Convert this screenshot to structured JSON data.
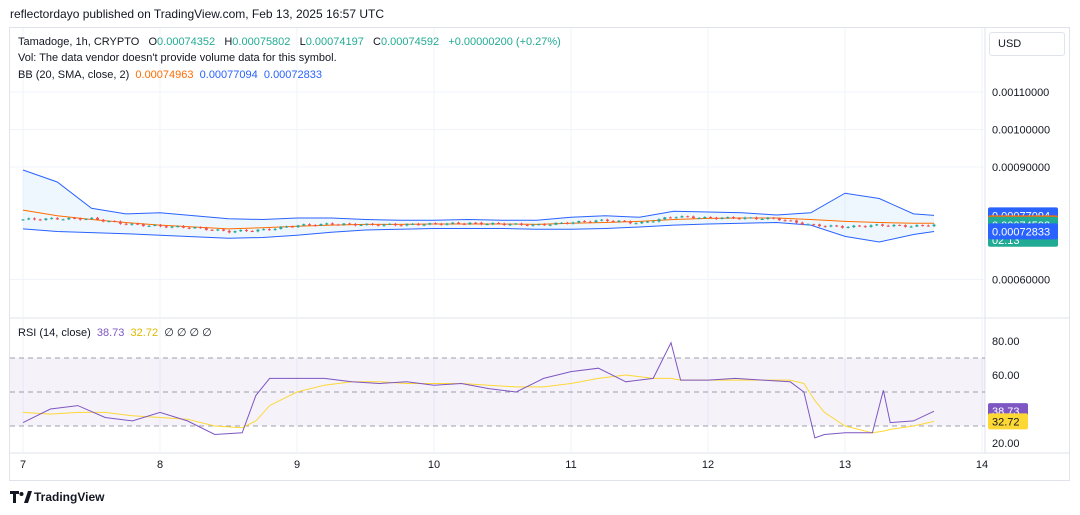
{
  "publisher": "reflectordayo published on TradingView.com, Feb 13, 2025 16:57 UTC",
  "legend": {
    "symbol": "Tamadoge, 1h, CRYPTO",
    "o_label": "O",
    "o": "0.00074352",
    "h_label": "H",
    "h": "0.00075802",
    "l_label": "L",
    "l": "0.00074197",
    "c_label": "C",
    "c": "0.00074592",
    "change": "+0.00000200 (+0.27%)",
    "vol": "Vol: The data vendor doesn't provide volume data for this symbol.",
    "bb_label": "BB (20, SMA, close, 2)",
    "bb_basis": "0.00074963",
    "bb_upper": "0.00077094",
    "bb_lower": "0.00072833"
  },
  "currency_button": "USD",
  "rsi_legend": {
    "label": "RSI (14, close)",
    "rsi": "38.73",
    "ma": "32.72",
    "extra": "∅ ∅ ∅ ∅"
  },
  "colors": {
    "up": "#26a69a",
    "down": "#ef5350",
    "basis": "#ff6d00",
    "band": "#2962ff",
    "rsi": "#7e57c2",
    "rsi_ma": "#fdd835",
    "text": "#131722",
    "last_price": "#22ab94"
  },
  "chart_data": [
    {
      "type": "line",
      "panel": "price",
      "y_ticks": [
        "0.00110000",
        "0.00100000",
        "0.00090000",
        "0.00060000"
      ],
      "x_ticks": [
        "7",
        "8",
        "9",
        "10",
        "11",
        "12",
        "13",
        "14"
      ],
      "ylim": [
        0.00052,
        0.00122
      ],
      "price_labels": {
        "upper": "0.00077094",
        "basis": "0.00074963",
        "last": "0.00074592",
        "countdown": "02:13",
        "lower": "0.00072833"
      },
      "x": [
        7.0,
        7.25,
        7.5,
        7.75,
        8.0,
        8.25,
        8.5,
        8.75,
        9.0,
        9.25,
        9.5,
        9.75,
        10.0,
        10.25,
        10.5,
        10.75,
        11.0,
        11.25,
        11.5,
        11.75,
        12.0,
        12.25,
        12.5,
        12.75,
        13.0,
        13.25,
        13.5,
        13.65
      ],
      "series": [
        {
          "role": "close",
          "values": [
            0.00076,
            0.000762,
            0.000762,
            0.000748,
            0.000742,
            0.000738,
            0.000728,
            0.000732,
            0.000744,
            0.000748,
            0.000746,
            0.000746,
            0.000748,
            0.00075,
            0.000748,
            0.000745,
            0.000752,
            0.000758,
            0.00075,
            0.000768,
            0.000764,
            0.000764,
            0.000762,
            0.000745,
            0.00074,
            0.000745,
            0.000742,
            0.000746
          ]
        },
        {
          "role": "upper",
          "values": [
            0.000892,
            0.00086,
            0.00079,
            0.000775,
            0.000778,
            0.00077,
            0.000762,
            0.00076,
            0.000764,
            0.000764,
            0.00076,
            0.000758,
            0.000758,
            0.00076,
            0.000758,
            0.000758,
            0.000766,
            0.00077,
            0.000766,
            0.000782,
            0.00078,
            0.000778,
            0.000772,
            0.000778,
            0.00083,
            0.000816,
            0.000775,
            0.000771
          ]
        },
        {
          "role": "basis",
          "values": [
            0.000785,
            0.00077,
            0.00076,
            0.000752,
            0.000745,
            0.00074,
            0.000735,
            0.000738,
            0.000742,
            0.000745,
            0.000747,
            0.000747,
            0.000748,
            0.000748,
            0.000748,
            0.000747,
            0.00075,
            0.000752,
            0.000755,
            0.00076,
            0.000763,
            0.000764,
            0.000764,
            0.00076,
            0.000755,
            0.000752,
            0.00075,
            0.00075
          ]
        },
        {
          "role": "lower",
          "values": [
            0.000735,
            0.000728,
            0.000725,
            0.000722,
            0.000718,
            0.000714,
            0.00071,
            0.000712,
            0.000718,
            0.000726,
            0.000732,
            0.000734,
            0.000736,
            0.000736,
            0.000736,
            0.000734,
            0.000734,
            0.000736,
            0.00074,
            0.000745,
            0.000748,
            0.00075,
            0.000752,
            0.000745,
            0.000715,
            0.0007,
            0.00072,
            0.000728
          ]
        }
      ]
    },
    {
      "type": "line",
      "panel": "rsi",
      "y_ticks": [
        "80.00",
        "60.00",
        "20.00"
      ],
      "ylim": [
        15,
        88
      ],
      "levels": [
        70,
        50,
        30
      ],
      "value_labels": {
        "rsi": "38.73",
        "ma": "32.72"
      },
      "x": [
        7.0,
        7.2,
        7.4,
        7.6,
        7.8,
        8.0,
        8.2,
        8.4,
        8.6,
        8.7,
        8.8,
        9.0,
        9.2,
        9.4,
        9.6,
        9.8,
        10.0,
        10.2,
        10.4,
        10.6,
        10.8,
        11.0,
        11.2,
        11.4,
        11.6,
        11.73,
        11.8,
        12.0,
        12.2,
        12.4,
        12.6,
        12.7,
        12.78,
        12.85,
        13.0,
        13.2,
        13.28,
        13.33,
        13.5,
        13.65
      ],
      "series": [
        {
          "name": "RSI",
          "values": [
            32,
            40,
            42,
            35,
            33,
            38,
            33,
            25,
            26,
            48,
            58,
            58,
            58,
            56,
            55,
            56,
            54,
            55,
            52,
            50,
            58,
            62,
            64,
            56,
            58,
            79,
            57,
            57,
            58,
            57,
            56,
            50,
            23,
            25,
            26,
            26,
            51,
            32,
            33,
            38.73
          ]
        },
        {
          "name": "RSI-based MA",
          "values": [
            38,
            37,
            38,
            38,
            36,
            35,
            34,
            30,
            29,
            33,
            42,
            50,
            54,
            56,
            56,
            55,
            55,
            55,
            54,
            53,
            53,
            55,
            58,
            60,
            58,
            58,
            57,
            57,
            57,
            57,
            57,
            55,
            45,
            38,
            30,
            26,
            27,
            28,
            30,
            32.72
          ]
        }
      ]
    }
  ]
}
